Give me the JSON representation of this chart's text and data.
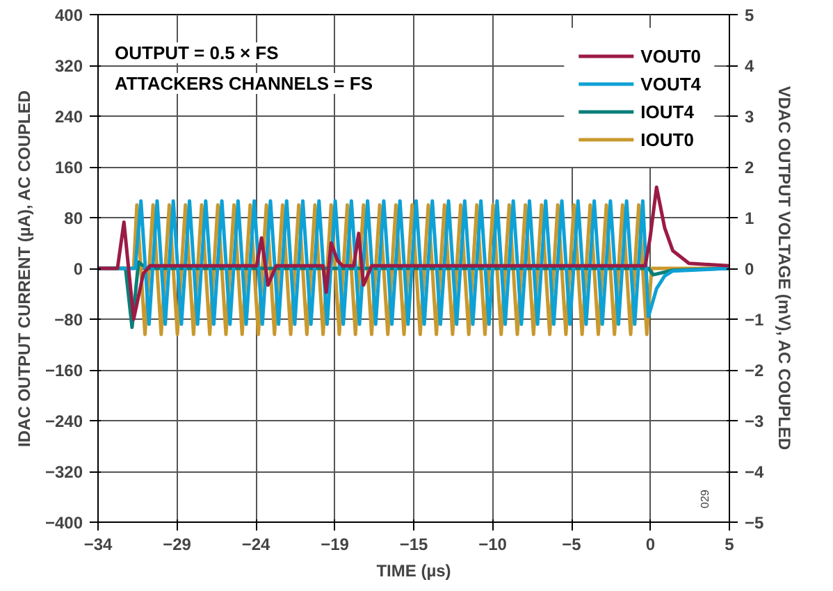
{
  "chart_data": {
    "type": "line",
    "xlabel": "TIME (µs)",
    "ylabel": "IDAC OUTPUT CURRENT (µA), AC COUPLED",
    "y2label": "VDAC OUTPUT VOLTAGE (mV), AC COUPLED",
    "annotations": [
      "OUTPUT = 0.5 × FS",
      "ATTACKERS CHANNELS = FS",
      "029"
    ],
    "xlim": [
      -34,
      5
    ],
    "xticks": [
      {
        "value": -34,
        "label": "−34"
      },
      {
        "value": -29.125,
        "label": "−29"
      },
      {
        "value": -24.25,
        "label": "−24"
      },
      {
        "value": -19.375,
        "label": "−19"
      },
      {
        "value": -14.5,
        "label": "−15"
      },
      {
        "value": -9.625,
        "label": "−10"
      },
      {
        "value": -4.75,
        "label": "−5"
      },
      {
        "value": 0.125,
        "label": "0"
      },
      {
        "value": 5,
        "label": "5"
      }
    ],
    "ylim": [
      -400,
      400
    ],
    "yticks": [
      {
        "value": -400,
        "label": "−400"
      },
      {
        "value": -320,
        "label": "−320"
      },
      {
        "value": -240,
        "label": "−240"
      },
      {
        "value": -160,
        "label": "−160"
      },
      {
        "value": -80,
        "label": "−80"
      },
      0,
      80,
      160,
      240,
      320,
      400
    ],
    "y2lim": [
      -5,
      5
    ],
    "y2ticks": [
      {
        "value": -5,
        "label": "−5"
      },
      {
        "value": -4,
        "label": "−4"
      },
      {
        "value": -3,
        "label": "−3"
      },
      {
        "value": -2,
        "label": "−2"
      },
      {
        "value": -1,
        "label": "−1"
      },
      0,
      1,
      2,
      3,
      4,
      5
    ],
    "grid": true,
    "legend": "top right",
    "line_style": "solid",
    "series": [
      {
        "name": "VOUT0",
        "color": "#9b1b45",
        "axis": "y2",
        "x": [
          -34,
          -32.8,
          -32.4,
          -31.8,
          -31.2,
          -30.8,
          -24.2,
          -23.9,
          -23.5,
          -23.0,
          -20.1,
          -19.9,
          -19.6,
          -19.2,
          -18.9,
          -18.2,
          -17.9,
          -17.6,
          -17.1,
          -0.2,
          0.1,
          0.5,
          1.0,
          1.5,
          2.5,
          5
        ],
        "values": [
          0,
          0,
          0.91,
          -1.0,
          -0.1,
          0.05,
          0.05,
          0.6,
          -0.33,
          0.05,
          0.05,
          -0.47,
          0.5,
          0.15,
          0.05,
          0.05,
          0.69,
          -0.33,
          0.05,
          0.05,
          0.6,
          1.6,
          0.8,
          0.35,
          0.1,
          0.05
        ]
      },
      {
        "name": "VOUT4",
        "color": "#0ea1d6",
        "axis": "y2",
        "x": [
          -34,
          -31.7,
          -31.35,
          -30.85,
          -30.35,
          -29.85,
          -29.35,
          -28.85,
          -28.35,
          -27.85,
          -27.35,
          -26.85,
          -26.35,
          -25.85,
          -25.35,
          -24.85,
          -24.35,
          -23.85,
          -23.35,
          -22.85,
          -22.35,
          -21.85,
          -21.35,
          -20.85,
          -20.35,
          -19.85,
          -19.35,
          -18.85,
          -18.35,
          -17.85,
          -17.35,
          -16.85,
          -16.35,
          -15.85,
          -15.35,
          -14.85,
          -14.35,
          -13.85,
          -13.35,
          -12.85,
          -12.35,
          -11.85,
          -11.35,
          -10.85,
          -10.35,
          -9.85,
          -9.35,
          -8.85,
          -8.35,
          -7.85,
          -7.35,
          -6.85,
          -6.35,
          -5.85,
          -5.35,
          -4.85,
          -4.35,
          -3.85,
          -3.35,
          -2.85,
          -2.35,
          -1.85,
          -1.35,
          -0.85,
          -0.35,
          0.0,
          0.5,
          1.0,
          1.5,
          5
        ],
        "values": [
          0,
          0,
          1.33,
          -1.1,
          1.33,
          -1.1,
          1.33,
          -1.1,
          1.33,
          -1.1,
          1.33,
          -1.1,
          1.33,
          -1.1,
          1.33,
          -1.1,
          1.33,
          -1.1,
          1.33,
          -1.1,
          1.33,
          -1.1,
          1.33,
          -1.1,
          1.33,
          -1.1,
          1.33,
          -1.1,
          1.33,
          -1.1,
          1.33,
          -1.1,
          1.33,
          -1.1,
          1.33,
          -1.1,
          1.33,
          -1.1,
          1.33,
          -1.1,
          1.33,
          -1.1,
          1.33,
          -1.1,
          1.33,
          -1.1,
          1.33,
          -1.1,
          1.33,
          -1.1,
          1.33,
          -1.1,
          1.33,
          -1.1,
          1.33,
          -1.1,
          1.33,
          -1.1,
          1.33,
          -1.1,
          1.33,
          -1.1,
          1.33,
          -1.1,
          1.33,
          -0.95,
          -0.4,
          -0.15,
          -0.05,
          0
        ]
      },
      {
        "name": "IOUT4",
        "color": "#0a7f78",
        "x": [
          -34,
          -32.3,
          -31.9,
          -31.5,
          -31.0,
          0.0,
          0.3,
          1.5,
          5
        ],
        "values": [
          0,
          0,
          -93,
          10,
          0,
          0,
          -10,
          -3,
          0
        ]
      },
      {
        "name": "IOUT0",
        "color": "#c9992e",
        "x": [
          -34,
          -31.8,
          -31.6,
          -31.1,
          -30.6,
          -30.1,
          -29.6,
          -29.1,
          -28.6,
          -28.1,
          -27.6,
          -27.1,
          -26.6,
          -26.1,
          -25.6,
          -25.1,
          -24.6,
          -24.1,
          -23.6,
          -23.1,
          -22.6,
          -22.1,
          -21.6,
          -21.1,
          -20.6,
          -20.1,
          -19.6,
          -19.1,
          -18.6,
          -18.1,
          -17.6,
          -17.1,
          -16.6,
          -16.1,
          -15.6,
          -15.1,
          -14.6,
          -14.1,
          -13.6,
          -13.1,
          -12.6,
          -12.1,
          -11.6,
          -11.1,
          -10.6,
          -10.1,
          -9.6,
          -9.1,
          -8.6,
          -8.1,
          -7.6,
          -7.1,
          -6.6,
          -6.1,
          -5.6,
          -5.1,
          -4.6,
          -4.1,
          -3.6,
          -3.1,
          -2.6,
          -2.1,
          -1.6,
          -1.1,
          -0.6,
          -0.1,
          0.2,
          5
        ],
        "values": [
          0,
          0,
          100,
          -104,
          100,
          -104,
          100,
          -104,
          100,
          -104,
          100,
          -104,
          100,
          -104,
          100,
          -104,
          100,
          -104,
          100,
          -104,
          100,
          -104,
          100,
          -104,
          100,
          -104,
          100,
          -104,
          100,
          -104,
          100,
          -104,
          100,
          -104,
          100,
          -104,
          100,
          -104,
          100,
          -104,
          100,
          -104,
          100,
          -104,
          100,
          -104,
          100,
          -104,
          100,
          -104,
          100,
          -104,
          100,
          -104,
          100,
          -104,
          100,
          -104,
          100,
          -104,
          100,
          -104,
          100,
          -104,
          100,
          -104,
          0,
          0
        ]
      }
    ]
  }
}
